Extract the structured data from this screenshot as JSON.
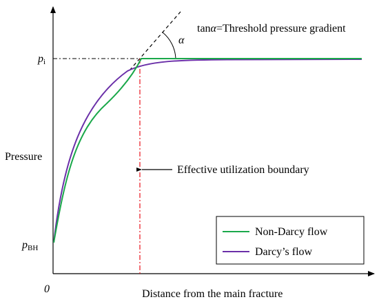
{
  "figure": {
    "y_axis_label": "Pressure",
    "x_axis_label": "Distance from the main fracture",
    "origin_label": "0",
    "p_i_label": {
      "base": "p",
      "sub": "i"
    },
    "p_bh_label": {
      "base": "p",
      "sub": "BH"
    },
    "alpha_symbol": "α",
    "tan_annotation": {
      "prefix": "tan",
      "symbol": "α",
      "text": "=Threshold pressure gradient"
    },
    "boundary_annotation": "Effective utilization boundary"
  },
  "legend": {
    "placement": "bottom-right",
    "items": [
      {
        "label": "Non-Darcy flow",
        "color": "#1aa84a"
      },
      {
        "label": "Darcy’s flow",
        "color": "#6a2fa8"
      }
    ]
  },
  "colors": {
    "axis": "#000000",
    "non_darcy": "#1aa84a",
    "darcy": "#6a2fa8",
    "boundary_line": "#e8101a",
    "tangent_line": "#000000"
  }
}
